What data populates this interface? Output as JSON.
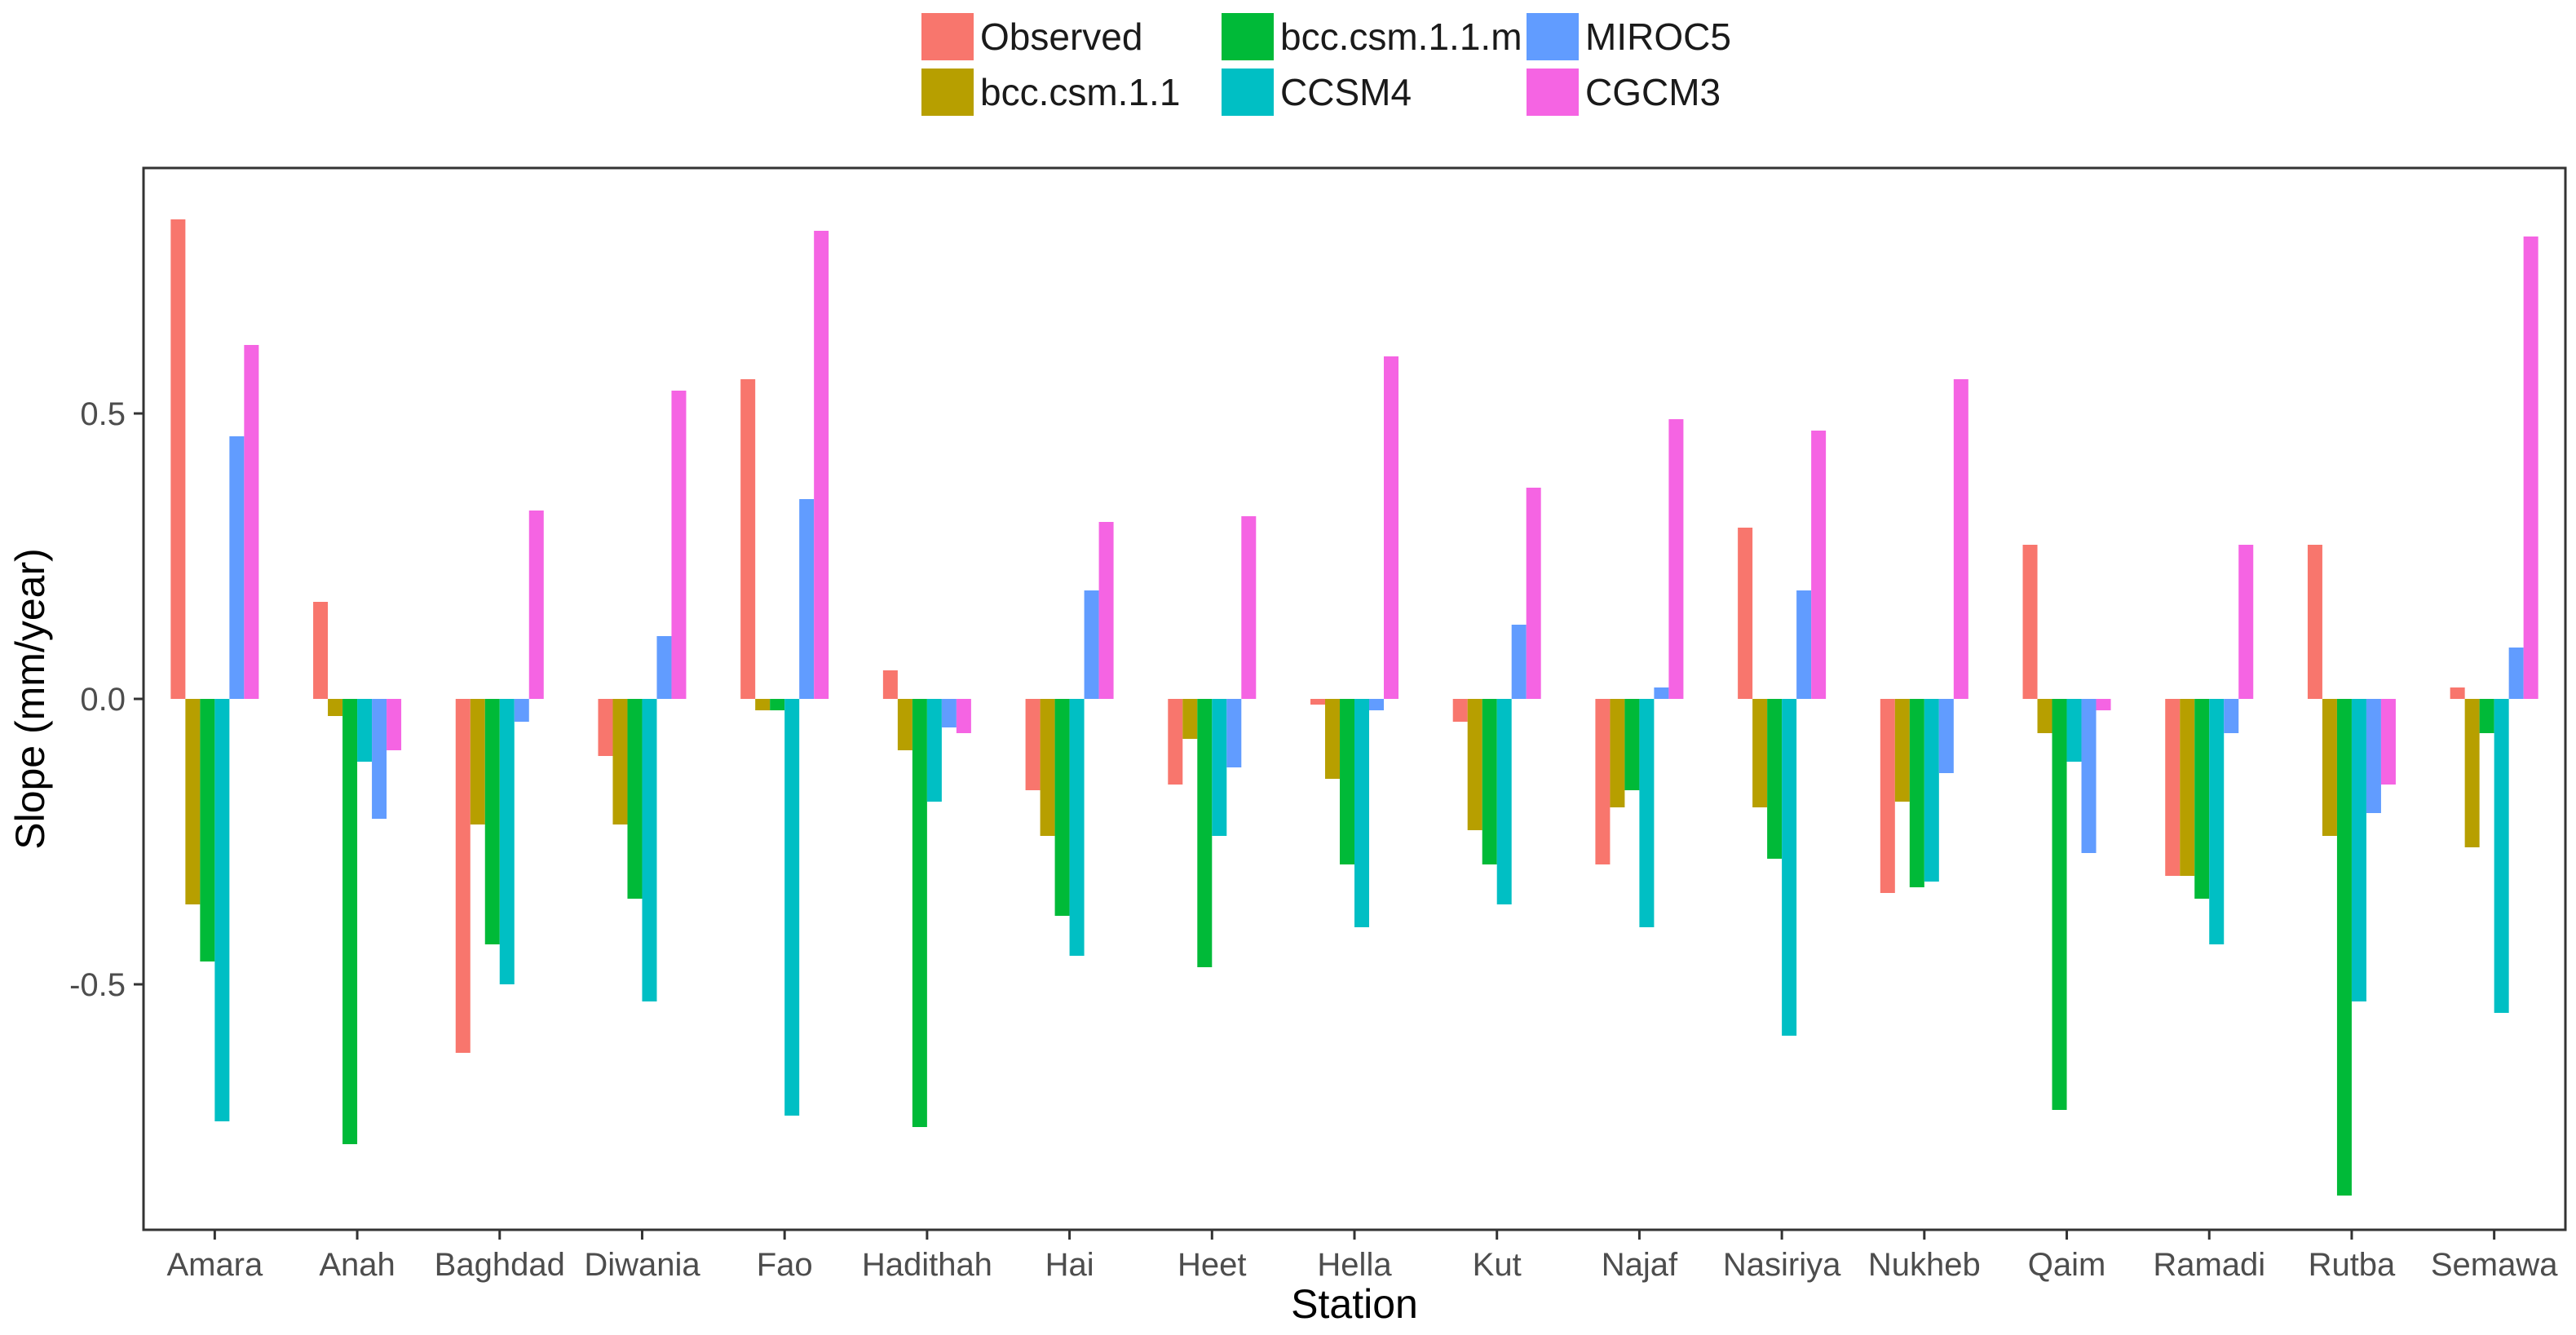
{
  "chart_data": {
    "type": "bar",
    "title": "",
    "xlabel": "Station",
    "ylabel": "Slope (mm/year)",
    "ylim": [
      -0.93,
      0.93
    ],
    "yticks": [
      -0.5,
      0.0,
      0.5
    ],
    "ytick_labels": [
      "-0.5",
      "0.0",
      "0.5"
    ],
    "grid": false,
    "legend_position": "top",
    "categories": [
      "Amara",
      "Anah",
      "Baghdad",
      "Diwania",
      "Fao",
      "Hadithah",
      "Hai",
      "Heet",
      "Hella",
      "Kut",
      "Najaf",
      "Nasiriya",
      "Nukheb",
      "Qaim",
      "Ramadi",
      "Rutba",
      "Semawa"
    ],
    "series": [
      {
        "name": "Observed",
        "color": "#F8766D",
        "values": [
          0.84,
          0.17,
          -0.62,
          -0.1,
          0.56,
          0.05,
          -0.16,
          -0.15,
          -0.01,
          -0.04,
          -0.29,
          0.3,
          -0.34,
          0.27,
          -0.31,
          0.27,
          0.02
        ]
      },
      {
        "name": "bcc.csm.1.1",
        "color": "#B79F00",
        "values": [
          -0.36,
          -0.03,
          -0.22,
          -0.22,
          -0.02,
          -0.09,
          -0.24,
          -0.07,
          -0.14,
          -0.23,
          -0.19,
          -0.19,
          -0.18,
          -0.06,
          -0.31,
          -0.24,
          -0.26
        ]
      },
      {
        "name": "bcc.csm.1.1.m",
        "color": "#00BA38",
        "values": [
          -0.46,
          -0.78,
          -0.43,
          -0.35,
          -0.02,
          -0.75,
          -0.38,
          -0.47,
          -0.29,
          -0.29,
          -0.16,
          -0.28,
          -0.33,
          -0.72,
          -0.35,
          -0.87,
          -0.06
        ]
      },
      {
        "name": "CCSM4",
        "color": "#00BFC4",
        "values": [
          -0.74,
          -0.11,
          -0.5,
          -0.53,
          -0.73,
          -0.18,
          -0.45,
          -0.24,
          -0.4,
          -0.36,
          -0.4,
          -0.59,
          -0.32,
          -0.11,
          -0.43,
          -0.53,
          -0.55
        ]
      },
      {
        "name": "MIROC5",
        "color": "#619CFF",
        "values": [
          0.46,
          -0.21,
          -0.04,
          0.11,
          0.35,
          -0.05,
          0.19,
          -0.12,
          -0.02,
          0.13,
          0.02,
          0.19,
          -0.13,
          -0.27,
          -0.06,
          -0.2,
          0.09
        ]
      },
      {
        "name": "CGCM3",
        "color": "#F564E3",
        "values": [
          0.62,
          -0.09,
          0.33,
          0.54,
          0.82,
          -0.06,
          0.31,
          0.32,
          0.6,
          0.37,
          0.49,
          0.47,
          0.56,
          -0.02,
          0.27,
          -0.15,
          0.81
        ]
      }
    ]
  }
}
